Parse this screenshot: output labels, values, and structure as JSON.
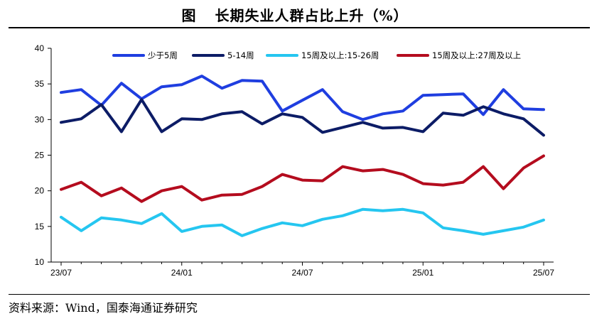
{
  "header": {
    "figure_label": "图",
    "title": "长期失业人群占比上升（%）"
  },
  "footer": {
    "source": "资料来源：Wind，国泰海通证券研究"
  },
  "chart_data": {
    "type": "line",
    "title": "长期失业人群占比上升（%）",
    "xlabel": "",
    "ylabel": "",
    "ylim": [
      10,
      40
    ],
    "yticks": [
      "10",
      "15",
      "20",
      "25",
      "30",
      "35",
      "40"
    ],
    "xticks": [
      "23/07",
      "24/01",
      "24/07",
      "25/01",
      "25/07"
    ],
    "xtick_indices": [
      0,
      6,
      12,
      18,
      24
    ],
    "legend_position": "top",
    "grid": false,
    "x": [
      "23/07",
      "23/08",
      "23/09",
      "23/10",
      "23/11",
      "23/12",
      "24/01",
      "24/02",
      "24/03",
      "24/04",
      "24/05",
      "24/06",
      "24/07",
      "24/08",
      "24/09",
      "24/10",
      "24/11",
      "24/12",
      "25/01",
      "25/02",
      "25/03",
      "25/04",
      "25/05",
      "25/06",
      "25/07"
    ],
    "series": [
      {
        "name": "少于5周",
        "color": "#1f3ee0",
        "values": [
          33.8,
          34.2,
          32.0,
          35.1,
          32.9,
          34.6,
          34.9,
          36.1,
          34.4,
          35.5,
          35.4,
          31.2,
          32.7,
          34.2,
          31.1,
          30.0,
          30.8,
          31.2,
          33.4,
          33.5,
          33.6,
          30.7,
          34.2,
          31.5,
          31.4
        ]
      },
      {
        "name": "5-14周",
        "color": "#0c1c66",
        "values": [
          29.6,
          30.1,
          32.1,
          28.3,
          32.8,
          28.3,
          30.1,
          30.0,
          30.8,
          31.1,
          29.4,
          30.8,
          30.3,
          28.2,
          28.9,
          29.6,
          28.8,
          28.9,
          28.3,
          30.9,
          30.6,
          31.8,
          30.8,
          30.1,
          27.8
        ]
      },
      {
        "name": "15周及以上:15-26周",
        "color": "#25c6f0",
        "values": [
          16.3,
          14.4,
          16.2,
          15.9,
          15.4,
          16.8,
          14.3,
          15.0,
          15.2,
          13.7,
          14.7,
          15.5,
          15.1,
          16.0,
          16.5,
          17.4,
          17.2,
          17.4,
          16.9,
          14.8,
          14.4,
          13.9,
          14.4,
          14.9,
          15.9
        ]
      },
      {
        "name": "15周及以上:27周及以上",
        "color": "#b40c1e",
        "values": [
          20.2,
          21.2,
          19.3,
          20.4,
          18.5,
          20.0,
          20.6,
          18.7,
          19.4,
          19.5,
          20.6,
          22.3,
          21.5,
          21.4,
          23.4,
          22.8,
          23.0,
          22.3,
          21.0,
          20.8,
          21.2,
          23.4,
          20.3,
          23.2,
          24.9
        ]
      }
    ]
  }
}
